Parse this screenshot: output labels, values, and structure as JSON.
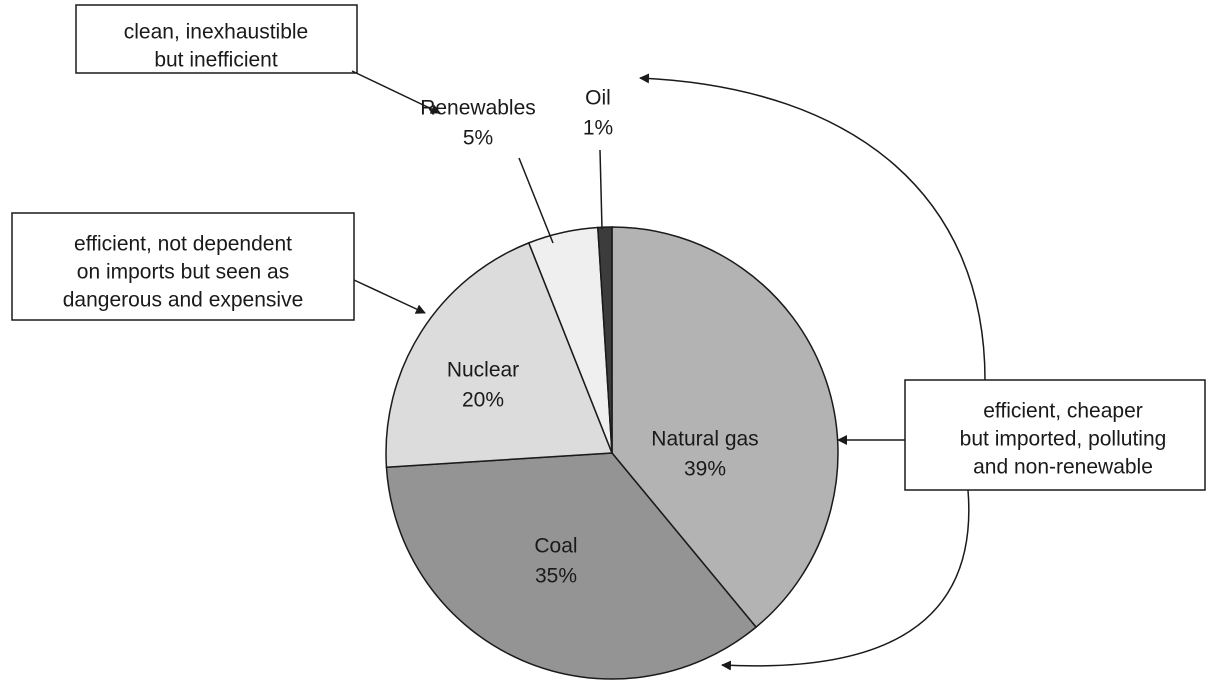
{
  "chart_data": {
    "type": "pie",
    "categories": [
      "Natural gas",
      "Coal",
      "Nuclear",
      "Renewables",
      "Oil"
    ],
    "values": [
      39,
      35,
      20,
      5,
      1
    ],
    "value_labels": [
      "39%",
      "35%",
      "20%",
      "5%",
      "1%"
    ],
    "colors": [
      "#b3b3b3",
      "#949494",
      "#dcdcdc",
      "#efefef",
      "#3c3c3c"
    ],
    "annotations": [
      [
        "clean, inexhaustible",
        "but inefficient"
      ],
      [
        "efficient, not dependent",
        "on imports but seen as",
        "dangerous and expensive"
      ],
      [
        "efficient, cheaper",
        "but imported, polluting",
        "and non-renewable"
      ]
    ]
  }
}
